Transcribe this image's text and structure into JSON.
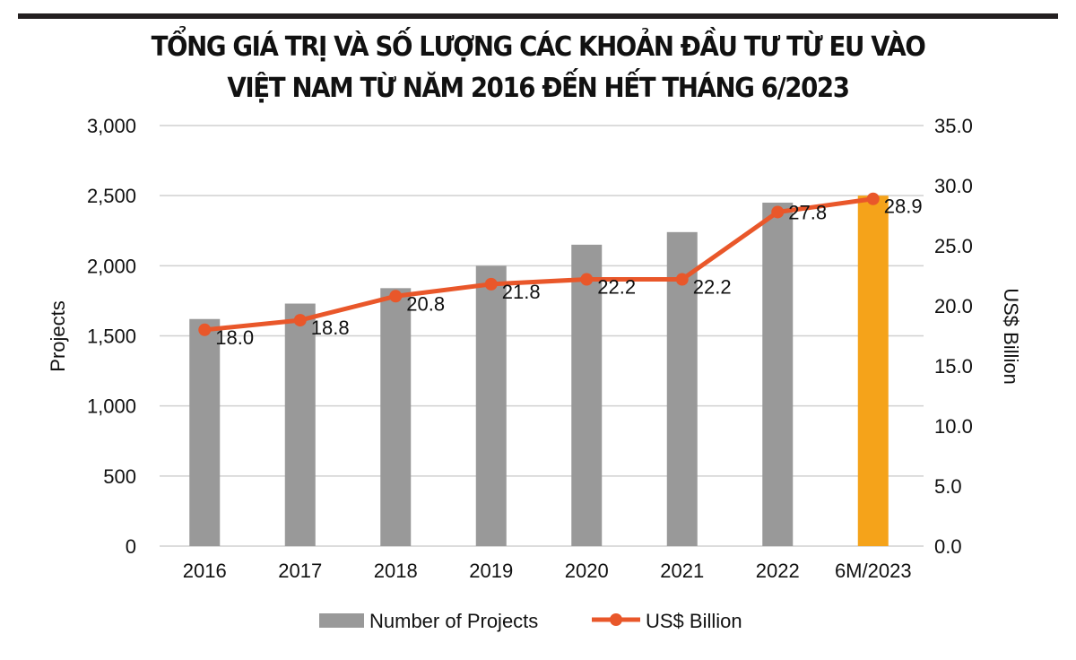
{
  "chart_data": {
    "type": "bar",
    "title": [
      "TỔNG GIÁ TRỊ VÀ SỐ LƯỢNG CÁC KHOẢN ĐẦU TƯ TỪ EU VÀO",
      "VIỆT NAM TỪ NĂM 2016 ĐẾN HẾT THÁNG 6/2023"
    ],
    "categories": [
      "2016",
      "2017",
      "2018",
      "2019",
      "2020",
      "2021",
      "2022",
      "6M/2023"
    ],
    "series": [
      {
        "name": "Number of Projects",
        "type": "bar",
        "axis": "left",
        "values": [
          1620,
          1730,
          1840,
          2000,
          2150,
          2240,
          2450,
          2500
        ],
        "color": "#999999",
        "highlight_color": "#f5a31a",
        "highlight_index": 7
      },
      {
        "name": "US$ Billion",
        "type": "line",
        "axis": "right",
        "values": [
          18.0,
          18.8,
          20.8,
          21.8,
          22.2,
          22.2,
          27.8,
          28.9
        ],
        "labels": [
          "18.0",
          "18.8",
          "20.8",
          "21.8",
          "22.2",
          "22.2",
          "27.8",
          "28.9"
        ],
        "color": "#e9572a"
      }
    ],
    "ylabel": "Projects",
    "y2label": "US$ Billion",
    "ylim": [
      0,
      3000
    ],
    "y2lim": [
      0,
      35
    ],
    "yticks": [
      "0",
      "500",
      "1,000",
      "1,500",
      "2,000",
      "2,500",
      "3,000"
    ],
    "y2ticks": [
      "0.0",
      "5.0",
      "10.0",
      "15.0",
      "20.0",
      "25.0",
      "30.0",
      "35.0"
    ],
    "grid": true,
    "legend": "bottom"
  }
}
